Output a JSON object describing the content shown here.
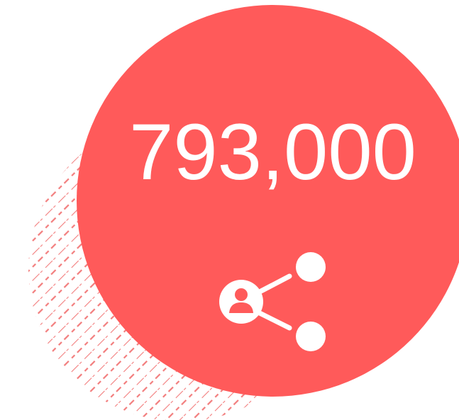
{
  "stat": {
    "value": "793,000"
  },
  "icon": {
    "name": "user-share-icon"
  },
  "colors": {
    "accent": "#ff5a5a",
    "hatch": "#f27d7d",
    "foreground": "#ffffff"
  }
}
